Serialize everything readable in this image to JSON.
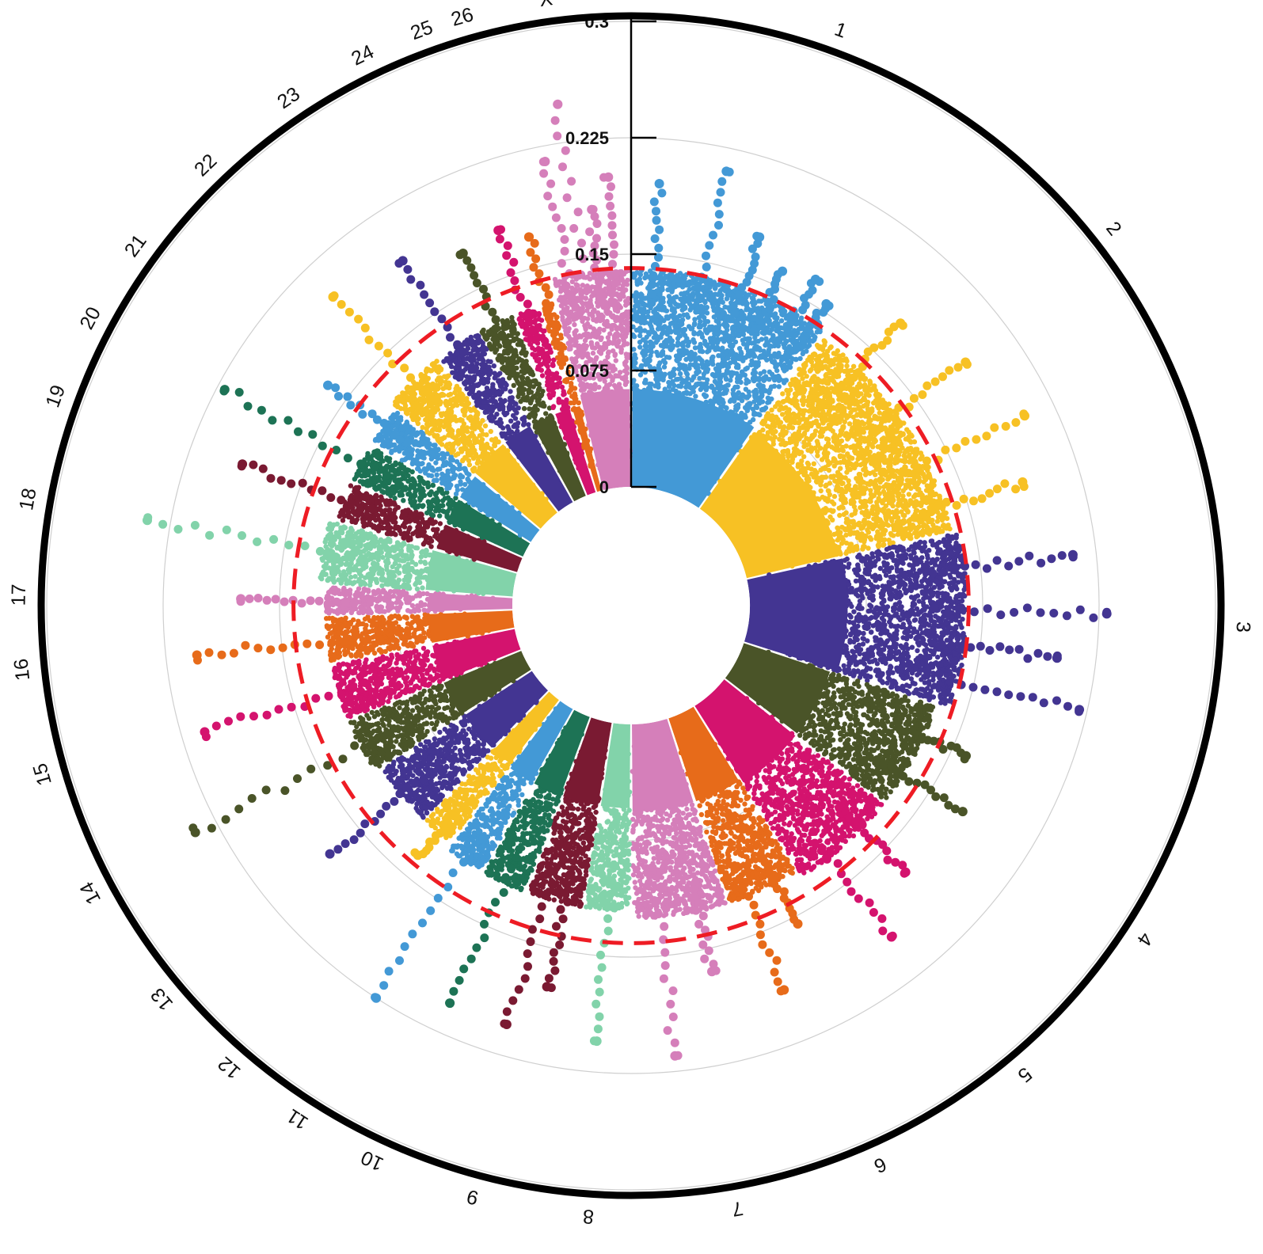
{
  "chart_data": {
    "type": "scatter",
    "subtype": "circular-manhattan",
    "title": "",
    "chromosomes": [
      "1",
      "2",
      "3",
      "4",
      "5",
      "6",
      "7",
      "8",
      "9",
      "10",
      "11",
      "12",
      "13",
      "14",
      "15",
      "16",
      "17",
      "18",
      "19",
      "20",
      "21",
      "22",
      "23",
      "24",
      "25",
      "26",
      "X"
    ],
    "rlim": [
      0,
      0.3
    ],
    "radial_ticks": [
      0,
      0.075,
      0.15,
      0.225,
      0.3
    ],
    "radial_tick_labels": [
      "0",
      "0.075",
      "0.15",
      "0.225",
      "0.3"
    ],
    "threshold": 0.141,
    "threshold_color": "#EE1C24",
    "grid": true,
    "colors": [
      "#4399D6",
      "#F7C124",
      "#433592",
      "#4A5428",
      "#D4136E",
      "#E76B1A",
      "#D57FBA",
      "#82D3AA",
      "#7A1A32",
      "#1D7355"
    ],
    "series": [
      {
        "name": "1",
        "segment_angle_deg": [
          0,
          35
        ],
        "bulk_max": 0.14,
        "peaks": [
          {
            "pos": 0.1,
            "value": 0.196
          },
          {
            "pos": 0.35,
            "value": 0.21
          },
          {
            "pos": 0.55,
            "value": 0.175
          },
          {
            "pos": 0.7,
            "value": 0.16
          },
          {
            "pos": 0.85,
            "value": 0.165
          },
          {
            "pos": 0.95,
            "value": 0.155
          }
        ]
      },
      {
        "name": "2",
        "segment_angle_deg": [
          35,
          77
        ],
        "bulk_max": 0.135,
        "peaks": [
          {
            "pos": 0.2,
            "value": 0.175
          },
          {
            "pos": 0.45,
            "value": 0.19
          },
          {
            "pos": 0.7,
            "value": 0.205
          },
          {
            "pos": 0.9,
            "value": 0.188
          }
        ]
      },
      {
        "name": "3",
        "segment_angle_deg": [
          77,
          108
        ],
        "bulk_max": 0.14,
        "peaks": [
          {
            "pos": 0.2,
            "value": 0.21
          },
          {
            "pos": 0.45,
            "value": 0.23
          },
          {
            "pos": 0.65,
            "value": 0.2
          },
          {
            "pos": 0.85,
            "value": 0.22
          }
        ]
      },
      {
        "name": "4",
        "segment_angle_deg": [
          108,
          128
        ],
        "bulk_max": 0.13,
        "peaks": [
          {
            "pos": 0.3,
            "value": 0.16
          },
          {
            "pos": 0.7,
            "value": 0.175
          }
        ]
      },
      {
        "name": "5",
        "segment_angle_deg": [
          128,
          148
        ],
        "bulk_max": 0.13,
        "peaks": [
          {
            "pos": 0.3,
            "value": 0.17
          },
          {
            "pos": 0.7,
            "value": 0.195
          }
        ]
      },
      {
        "name": "6",
        "segment_angle_deg": [
          148,
          162
        ],
        "bulk_max": 0.125,
        "peaks": [
          {
            "pos": 0.3,
            "value": 0.155
          },
          {
            "pos": 0.75,
            "value": 0.19
          }
        ]
      },
      {
        "name": "7",
        "segment_angle_deg": [
          162,
          180
        ],
        "bulk_max": 0.125,
        "peaks": [
          {
            "pos": 0.3,
            "value": 0.165
          },
          {
            "pos": 0.7,
            "value": 0.215
          }
        ]
      },
      {
        "name": "8",
        "segment_angle_deg": [
          180,
          189
        ],
        "bulk_max": 0.12,
        "peaks": [
          {
            "pos": 0.5,
            "value": 0.205
          }
        ]
      },
      {
        "name": "9",
        "segment_angle_deg": [
          189,
          200
        ],
        "bulk_max": 0.12,
        "peaks": [
          {
            "pos": 0.3,
            "value": 0.175
          },
          {
            "pos": 0.7,
            "value": 0.205
          }
        ]
      },
      {
        "name": "10",
        "segment_angle_deg": [
          200,
          209
        ],
        "bulk_max": 0.12,
        "peaks": [
          {
            "pos": 0.5,
            "value": 0.205
          }
        ]
      },
      {
        "name": "11",
        "segment_angle_deg": [
          209,
          217
        ],
        "bulk_max": 0.12,
        "peaks": [
          {
            "pos": 0.5,
            "value": 0.225
          }
        ]
      },
      {
        "name": "12",
        "segment_angle_deg": [
          217,
          224
        ],
        "bulk_max": 0.115,
        "peaks": [
          {
            "pos": 0.5,
            "value": 0.135
          }
        ]
      },
      {
        "name": "13",
        "segment_angle_deg": [
          224,
          237
        ],
        "bulk_max": 0.115,
        "peaks": [
          {
            "pos": 0.5,
            "value": 0.175
          }
        ]
      },
      {
        "name": "14",
        "segment_angle_deg": [
          237,
          248
        ],
        "bulk_max": 0.12,
        "peaks": [
          {
            "pos": 0.5,
            "value": 0.24
          }
        ]
      },
      {
        "name": "15",
        "segment_angle_deg": [
          248,
          259
        ],
        "bulk_max": 0.12,
        "peaks": [
          {
            "pos": 0.5,
            "value": 0.21
          }
        ]
      },
      {
        "name": "16",
        "segment_angle_deg": [
          259,
          268
        ],
        "bulk_max": 0.12,
        "peaks": [
          {
            "pos": 0.5,
            "value": 0.205
          }
        ]
      },
      {
        "name": "17",
        "segment_angle_deg": [
          268,
          274
        ],
        "bulk_max": 0.12,
        "peaks": [
          {
            "pos": 0.5,
            "value": 0.175
          }
        ]
      },
      {
        "name": "18",
        "segment_angle_deg": [
          274,
          286
        ],
        "bulk_max": 0.125,
        "peaks": [
          {
            "pos": 0.5,
            "value": 0.24
          }
        ]
      },
      {
        "name": "19",
        "segment_angle_deg": [
          286,
          294
        ],
        "bulk_max": 0.12,
        "peaks": [
          {
            "pos": 0.5,
            "value": 0.19
          }
        ]
      },
      {
        "name": "20",
        "segment_angle_deg": [
          294,
          302
        ],
        "bulk_max": 0.12,
        "peaks": [
          {
            "pos": 0.5,
            "value": 0.22
          }
        ]
      },
      {
        "name": "21",
        "segment_angle_deg": [
          302,
          310
        ],
        "bulk_max": 0.12,
        "peaks": [
          {
            "pos": 0.5,
            "value": 0.165
          }
        ]
      },
      {
        "name": "22",
        "segment_angle_deg": [
          310,
          322
        ],
        "bulk_max": 0.125,
        "peaks": [
          {
            "pos": 0.5,
            "value": 0.2
          }
        ]
      },
      {
        "name": "23",
        "segment_angle_deg": [
          322,
          331
        ],
        "bulk_max": 0.125,
        "peaks": [
          {
            "pos": 0.5,
            "value": 0.19
          }
        ]
      },
      {
        "name": "24",
        "segment_angle_deg": [
          331,
          338
        ],
        "bulk_max": 0.125,
        "peaks": [
          {
            "pos": 0.5,
            "value": 0.175
          }
        ]
      },
      {
        "name": "25",
        "segment_angle_deg": [
          338,
          343
        ],
        "bulk_max": 0.125,
        "peaks": [
          {
            "pos": 0.5,
            "value": 0.18
          }
        ]
      },
      {
        "name": "26",
        "segment_angle_deg": [
          343,
          346
        ],
        "bulk_max": 0.125,
        "peaks": [
          {
            "pos": 0.5,
            "value": 0.17
          }
        ]
      },
      {
        "name": "X",
        "segment_angle_deg": [
          346,
          360
        ],
        "bulk_max": 0.14,
        "peaks": [
          {
            "pos": 0.2,
            "value": 0.215
          },
          {
            "pos": 0.4,
            "value": 0.25
          },
          {
            "pos": 0.6,
            "value": 0.18
          },
          {
            "pos": 0.8,
            "value": 0.2
          }
        ]
      }
    ],
    "outer_labels": [
      {
        "text": "1",
        "angle_deg": 20
      },
      {
        "text": "2",
        "angle_deg": 52
      },
      {
        "text": "3",
        "angle_deg": 92
      },
      {
        "text": "4",
        "angle_deg": 123
      },
      {
        "text": "5",
        "angle_deg": 140
      },
      {
        "text": "6",
        "angle_deg": 156
      },
      {
        "text": "7",
        "angle_deg": 170
      },
      {
        "text": "8",
        "angle_deg": 184
      },
      {
        "text": "9",
        "angle_deg": 195
      },
      {
        "text": "10",
        "angle_deg": 205
      },
      {
        "text": "11",
        "angle_deg": 213
      },
      {
        "text": "12",
        "angle_deg": 221
      },
      {
        "text": "13",
        "angle_deg": 230
      },
      {
        "text": "14",
        "angle_deg": 242
      },
      {
        "text": "15",
        "angle_deg": 254
      },
      {
        "text": "16",
        "angle_deg": 264
      },
      {
        "text": "17",
        "angle_deg": 271
      },
      {
        "text": "18",
        "angle_deg": 280
      },
      {
        "text": "19",
        "angle_deg": 290
      },
      {
        "text": "20",
        "angle_deg": 298
      },
      {
        "text": "21",
        "angle_deg": 306
      },
      {
        "text": "22",
        "angle_deg": 316
      },
      {
        "text": "23",
        "angle_deg": 326
      },
      {
        "text": "24",
        "angle_deg": 334
      },
      {
        "text": "25",
        "angle_deg": 340
      },
      {
        "text": "26",
        "angle_deg": 344
      },
      {
        "text": "X",
        "angle_deg": 352
      }
    ]
  }
}
